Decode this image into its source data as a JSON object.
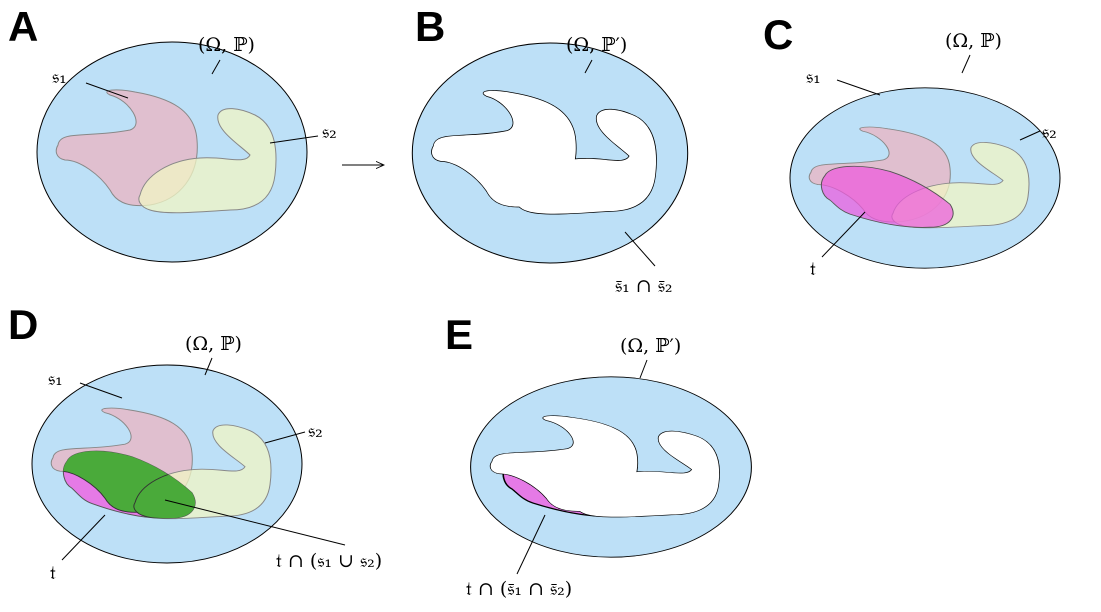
{
  "panels": [
    {
      "label": "A",
      "space": "(Ω, ℙ)",
      "regions": [
        "𝔰₁",
        "𝔰₂"
      ]
    },
    {
      "label": "B",
      "space": "(Ω, ℙ′)",
      "regions": [
        "𝔰̄₁ ∩ 𝔰̄₂"
      ]
    },
    {
      "label": "C",
      "space": "(Ω, ℙ)",
      "regions": [
        "𝔰₁",
        "𝔰₂",
        "𝔱"
      ]
    },
    {
      "label": "D",
      "space": "(Ω, ℙ)",
      "regions": [
        "𝔰₁",
        "𝔰₂",
        "𝔱",
        "𝔱 ∩ (𝔰₁ ∪ 𝔰₂)"
      ]
    },
    {
      "label": "E",
      "space": "(Ω, ℙ′)",
      "regions": [
        "𝔱 ∩ (𝔰̄₁ ∩ 𝔰̄₂)"
      ]
    }
  ]
}
